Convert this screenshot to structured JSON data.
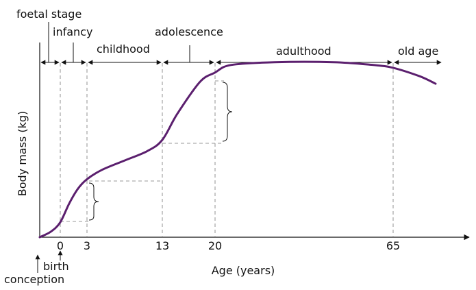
{
  "chart_data": {
    "type": "line",
    "title": "",
    "xlabel": "Age (years)",
    "ylabel": "Body mass (kg)",
    "x_tick_labels": [
      "0",
      "3",
      "13",
      "20",
      "65"
    ],
    "x_tick_values": [
      0,
      3,
      13,
      20,
      65
    ],
    "stages": [
      "foetal stage",
      "infancy",
      "childhood",
      "adolescence",
      "adulthood",
      "old age"
    ],
    "annotations": {
      "birth": "birth",
      "conception": "conception"
    },
    "series": [
      {
        "values": "relative body mass (y-axis unlabelled); conception shown before age 0",
        "color": "#5b1f6e",
        "points": [
          {
            "x": -2.2,
            "y": 0.0
          },
          {
            "x": -1.0,
            "y": 0.03
          },
          {
            "x": 0.0,
            "y": 0.08
          },
          {
            "x": 1.0,
            "y": 0.18
          },
          {
            "x": 2.0,
            "y": 0.26
          },
          {
            "x": 3.0,
            "y": 0.31
          },
          {
            "x": 5.0,
            "y": 0.36
          },
          {
            "x": 8.0,
            "y": 0.41
          },
          {
            "x": 11.0,
            "y": 0.46
          },
          {
            "x": 13.0,
            "y": 0.52
          },
          {
            "x": 15.0,
            "y": 0.66
          },
          {
            "x": 18.0,
            "y": 0.83
          },
          {
            "x": 20.0,
            "y": 0.88
          },
          {
            "x": 24.0,
            "y": 0.92
          },
          {
            "x": 35.0,
            "y": 0.935
          },
          {
            "x": 50.0,
            "y": 0.935
          },
          {
            "x": 60.0,
            "y": 0.92
          },
          {
            "x": 65.0,
            "y": 0.905
          },
          {
            "x": 70.0,
            "y": 0.86
          },
          {
            "x": 73.0,
            "y": 0.82
          }
        ]
      }
    ],
    "grid": false,
    "legend": "none"
  }
}
